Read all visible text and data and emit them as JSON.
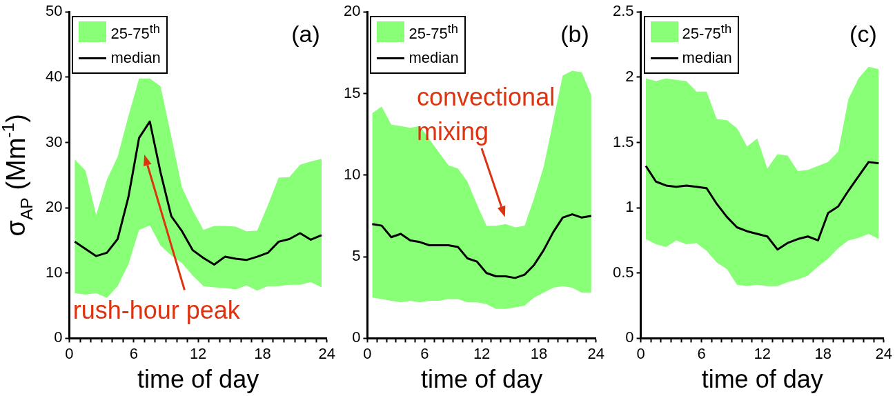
{
  "chart_data": [
    {
      "type": "line",
      "ylabel": "σ$_{AP}$ (Mm$^{-1}$)",
      "xlabel": "time of day",
      "legend": "top left",
      "legend_title": "25-75$^{th}$",
      "annotations": [
        "(a)",
        "rush-hour peak"
      ],
      "xlim": [
        0,
        24
      ],
      "ylim": [
        0,
        50
      ],
      "yticks": [
        0,
        10,
        20,
        30,
        40,
        50
      ],
      "xticks": [
        0,
        {
          "value": 1,
          "label": null
        },
        {
          "value": 2,
          "label": null
        },
        {
          "value": 3,
          "label": null
        },
        {
          "value": 4,
          "label": null
        },
        {
          "value": 5,
          "label": null
        },
        6,
        {
          "value": 7,
          "label": null
        },
        {
          "value": 8,
          "label": null
        },
        {
          "value": 9,
          "label": null
        },
        {
          "value": 10,
          "label": null
        },
        {
          "value": 11,
          "label": null
        },
        12,
        {
          "value": 13,
          "label": null
        },
        {
          "value": 14,
          "label": null
        },
        {
          "value": 15,
          "label": null
        },
        {
          "value": 16,
          "label": null
        },
        {
          "value": 17,
          "label": null
        },
        18,
        {
          "value": 19,
          "label": null
        },
        {
          "value": 20,
          "label": null
        },
        {
          "value": 21,
          "label": null
        },
        {
          "value": 22,
          "label": null
        },
        {
          "value": 23,
          "label": null
        },
        24
      ],
      "x": [
        0.5,
        1.5,
        2.5,
        3.5,
        4.5,
        5.5,
        6.5,
        7.5,
        8.5,
        9.5,
        10.5,
        11.5,
        12.5,
        13.5,
        14.5,
        15.5,
        16.5,
        17.5,
        18.5,
        19.5,
        20.5,
        21.5,
        22.5,
        23.5
      ],
      "series": [
        {
          "name": "median",
          "color": "#000000",
          "values": [
            14.8,
            13.7,
            12.6,
            13.1,
            15.2,
            21.6,
            30.7,
            33.2,
            25.4,
            18.7,
            16.4,
            13.5,
            12.3,
            11.3,
            12.5,
            12.2,
            12.0,
            12.5,
            13.1,
            14.8,
            15.2,
            16.1,
            15.1,
            15.8
          ],
          "lower": [
            6.9,
            6.7,
            6.9,
            6.2,
            8.0,
            11.3,
            16.6,
            17.3,
            14.2,
            12.7,
            11.5,
            9.6,
            8.0,
            7.8,
            7.7,
            7.5,
            8.1,
            7.3,
            8.0,
            8.0,
            8.2,
            8.2,
            8.6,
            7.8
          ],
          "upper": [
            27.4,
            25.7,
            18.9,
            24.3,
            27.8,
            34,
            39.8,
            39.8,
            38.6,
            30.9,
            23.1,
            19.6,
            16.6,
            17.2,
            17.2,
            17.1,
            16.4,
            16.5,
            20.4,
            24.6,
            24.7,
            26.6,
            27.1,
            27.5
          ]
        }
      ]
    },
    {
      "type": "line",
      "xlabel": "time of day",
      "legend": "top left",
      "legend_title": "25-75$^{th}$",
      "annotations": [
        "(b)",
        "convectional mixing"
      ],
      "xlim": [
        0,
        24
      ],
      "ylim": [
        0,
        20
      ],
      "yticks": [
        0,
        5,
        10,
        15,
        20
      ],
      "xticks": [
        0,
        {
          "value": 1,
          "label": null
        },
        {
          "value": 2,
          "label": null
        },
        {
          "value": 3,
          "label": null
        },
        {
          "value": 4,
          "label": null
        },
        {
          "value": 5,
          "label": null
        },
        6,
        {
          "value": 7,
          "label": null
        },
        {
          "value": 8,
          "label": null
        },
        {
          "value": 9,
          "label": null
        },
        {
          "value": 10,
          "label": null
        },
        {
          "value": 11,
          "label": null
        },
        12,
        {
          "value": 13,
          "label": null
        },
        {
          "value": 14,
          "label": null
        },
        {
          "value": 15,
          "label": null
        },
        {
          "value": 16,
          "label": null
        },
        {
          "value": 17,
          "label": null
        },
        18,
        {
          "value": 19,
          "label": null
        },
        {
          "value": 20,
          "label": null
        },
        {
          "value": 21,
          "label": null
        },
        {
          "value": 22,
          "label": null
        },
        {
          "value": 23,
          "label": null
        },
        24
      ],
      "x": [
        0.5,
        1.5,
        2.5,
        3.5,
        4.5,
        5.5,
        6.5,
        7.5,
        8.5,
        9.5,
        10.5,
        11.5,
        12.5,
        13.5,
        14.5,
        15.5,
        16.5,
        17.5,
        18.5,
        19.5,
        20.5,
        21.5,
        22.5,
        23.5
      ],
      "series": [
        {
          "name": "median",
          "color": "#000000",
          "values": [
            7.0,
            6.9,
            6.2,
            6.4,
            6.0,
            5.9,
            5.7,
            5.7,
            5.7,
            5.6,
            4.9,
            4.7,
            4.0,
            3.8,
            3.8,
            3.7,
            3.9,
            4.5,
            5.4,
            6.5,
            7.4,
            7.6,
            7.4,
            7.5
          ],
          "lower": [
            2.5,
            2.4,
            2.3,
            2.2,
            2.3,
            2.2,
            2.3,
            2.3,
            2.4,
            2.4,
            2.2,
            2.2,
            2.1,
            1.8,
            1.8,
            1.9,
            2.0,
            2.5,
            2.8,
            3.1,
            3.2,
            3.1,
            2.8,
            2.8
          ],
          "upper": [
            13.8,
            14.2,
            13.1,
            13.0,
            12.9,
            13.0,
            12.2,
            11.4,
            10.6,
            10.4,
            9.6,
            8.2,
            6.9,
            6.9,
            7.0,
            6.8,
            6.9,
            8.6,
            10.5,
            13.3,
            16.1,
            16.4,
            16.3,
            14.9
          ]
        }
      ]
    },
    {
      "type": "line",
      "xlabel": "time of day",
      "legend": "top left",
      "legend_title": "25-75$^{th}$",
      "annotations": [
        "(c)"
      ],
      "xlim": [
        0,
        24
      ],
      "ylim": [
        0,
        2.5
      ],
      "yticks": [
        0,
        0.5,
        1,
        1.5,
        2,
        2.5
      ],
      "xticks": [
        0,
        {
          "value": 1,
          "label": null
        },
        {
          "value": 2,
          "label": null
        },
        {
          "value": 3,
          "label": null
        },
        {
          "value": 4,
          "label": null
        },
        {
          "value": 5,
          "label": null
        },
        6,
        {
          "value": 7,
          "label": null
        },
        {
          "value": 8,
          "label": null
        },
        {
          "value": 9,
          "label": null
        },
        {
          "value": 10,
          "label": null
        },
        {
          "value": 11,
          "label": null
        },
        12,
        {
          "value": 13,
          "label": null
        },
        {
          "value": 14,
          "label": null
        },
        {
          "value": 15,
          "label": null
        },
        {
          "value": 16,
          "label": null
        },
        {
          "value": 17,
          "label": null
        },
        18,
        {
          "value": 19,
          "label": null
        },
        {
          "value": 20,
          "label": null
        },
        {
          "value": 21,
          "label": null
        },
        {
          "value": 22,
          "label": null
        },
        {
          "value": 23,
          "label": null
        },
        24
      ],
      "x": [
        0.5,
        1.5,
        2.5,
        3.5,
        4.5,
        5.5,
        6.5,
        7.5,
        8.5,
        9.5,
        10.5,
        11.5,
        12.5,
        13.5,
        14.5,
        15.5,
        16.5,
        17.5,
        18.5,
        19.5,
        20.5,
        21.5,
        22.5,
        23.5
      ],
      "series": [
        {
          "name": "median",
          "color": "#000000",
          "values": [
            1.32,
            1.2,
            1.17,
            1.16,
            1.17,
            1.16,
            1.15,
            1.03,
            0.93,
            0.85,
            0.82,
            0.8,
            0.78,
            0.68,
            0.73,
            0.76,
            0.78,
            0.75,
            0.96,
            1.01,
            1.13,
            1.24,
            1.35,
            1.34
          ],
          "lower": [
            0.76,
            0.72,
            0.7,
            0.75,
            0.72,
            0.73,
            0.67,
            0.58,
            0.53,
            0.41,
            0.4,
            0.41,
            0.4,
            0.4,
            0.43,
            0.45,
            0.48,
            0.55,
            0.61,
            0.69,
            0.75,
            0.77,
            0.8,
            0.76
          ],
          "upper": [
            1.99,
            1.97,
            1.99,
            1.98,
            1.97,
            1.89,
            1.89,
            1.68,
            1.67,
            1.61,
            1.47,
            1.53,
            1.3,
            1.41,
            1.4,
            1.28,
            1.29,
            1.32,
            1.35,
            1.43,
            1.83,
            1.99,
            2.08,
            2.06
          ]
        }
      ]
    }
  ]
}
